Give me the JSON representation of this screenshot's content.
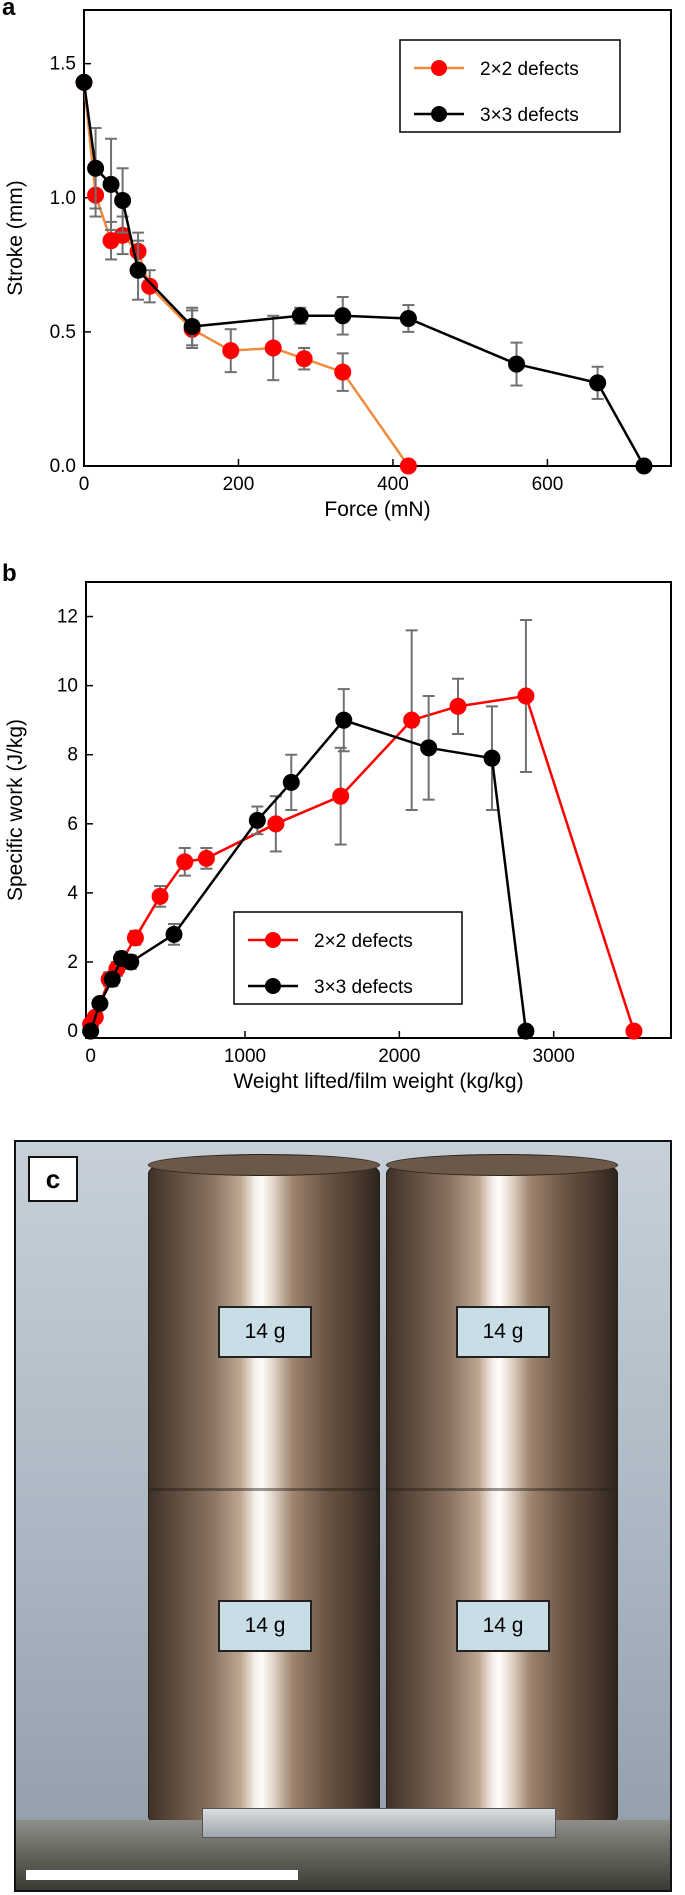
{
  "panels": {
    "a": "a",
    "b": "b",
    "c": "c"
  },
  "colors": {
    "series_2x2": "#ff0000",
    "line_2x2_a": "#f08a3c",
    "series_3x3": "#000000",
    "errorbar": "#777777"
  },
  "chart_data": [
    {
      "type": "line",
      "panel": "a",
      "xlabel": "Force (mN)",
      "ylabel": "Stroke (mm)",
      "xlim": [
        0,
        760
      ],
      "ylim": [
        0,
        1.7
      ],
      "xticks": [
        0,
        200,
        400,
        600
      ],
      "yticks": [
        0.0,
        0.5,
        1.0,
        1.5
      ],
      "ytick_labels": [
        "0.0",
        "0.5",
        "1.0",
        "1.5"
      ],
      "legend": "top-right",
      "series": [
        {
          "name": "2×2 defects",
          "x": [
            0,
            15,
            35,
            50,
            70,
            85,
            140,
            190,
            245,
            285,
            335,
            420
          ],
          "y": [
            1.43,
            1.01,
            0.84,
            0.86,
            0.8,
            0.67,
            0.51,
            0.43,
            0.44,
            0.4,
            0.35,
            0.0
          ],
          "err": [
            0.0,
            0.08,
            0.07,
            0.07,
            0.07,
            0.06,
            0.07,
            0.08,
            0.12,
            0.04,
            0.07,
            0.0
          ]
        },
        {
          "name": "3×3 defects",
          "x": [
            0,
            15,
            35,
            50,
            70,
            140,
            280,
            335,
            420,
            560,
            665,
            725
          ],
          "y": [
            1.43,
            1.11,
            1.05,
            0.99,
            0.73,
            0.52,
            0.56,
            0.56,
            0.55,
            0.38,
            0.31,
            0.0
          ],
          "err": [
            0.0,
            0.15,
            0.17,
            0.12,
            0.11,
            0.07,
            0.03,
            0.07,
            0.05,
            0.08,
            0.06,
            0.0
          ]
        }
      ]
    },
    {
      "type": "line",
      "panel": "b",
      "xlabel": "Weight lifted/film weight (kg/kg)",
      "ylabel": "Specific work (J/kg)",
      "xlim": [
        -30,
        3760
      ],
      "ylim": [
        -0.2,
        13
      ],
      "xticks": [
        0,
        1000,
        2000,
        3000
      ],
      "yticks": [
        0,
        2,
        4,
        6,
        8,
        10,
        12
      ],
      "legend": "bottom-center",
      "series": [
        {
          "name": "2×2 defects",
          "x": [
            0,
            30,
            120,
            170,
            290,
            450,
            610,
            750,
            1200,
            1620,
            2080,
            2380,
            2820,
            3520
          ],
          "y": [
            0.2,
            0.4,
            1.5,
            1.8,
            2.7,
            3.9,
            4.9,
            5.0,
            6.0,
            6.8,
            9.0,
            9.4,
            9.7,
            0.0
          ],
          "err": [
            0.1,
            0.1,
            0.2,
            0.2,
            0.2,
            0.3,
            0.4,
            0.3,
            0.8,
            1.4,
            2.6,
            0.8,
            2.2,
            0.0
          ]
        },
        {
          "name": "3×3 defects",
          "x": [
            0,
            60,
            140,
            200,
            260,
            540,
            1080,
            1300,
            1640,
            2190,
            2600,
            2820
          ],
          "y": [
            0.0,
            0.8,
            1.5,
            2.1,
            2.0,
            2.8,
            6.1,
            7.2,
            9.0,
            8.2,
            7.9,
            0.0
          ],
          "err": [
            0.0,
            0.1,
            0.2,
            0.2,
            0.2,
            0.3,
            0.4,
            0.8,
            0.9,
            1.5,
            1.5,
            0.0
          ]
        }
      ]
    }
  ],
  "photo": {
    "mass_labels": [
      "14 g",
      "14 g",
      "14 g",
      "14 g"
    ]
  }
}
